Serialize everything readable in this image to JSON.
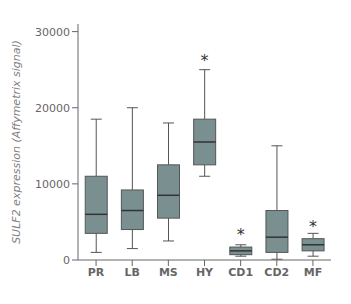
{
  "chart_data": {
    "type": "box",
    "categories": [
      "PR",
      "LB",
      "MS",
      "HY",
      "CD1",
      "CD2",
      "MF"
    ],
    "whislo": [
      1000,
      1500,
      2500,
      11000,
      500,
      100,
      500
    ],
    "q1": [
      3500,
      4000,
      5500,
      12500,
      700,
      1000,
      1200
    ],
    "med": [
      6000,
      6500,
      8500,
      15500,
      1200,
      3000,
      2000
    ],
    "q3": [
      11000,
      9200,
      12500,
      18500,
      1700,
      6500,
      2800
    ],
    "whishi": [
      18500,
      20000,
      18000,
      25000,
      2000,
      15000,
      3500
    ],
    "annotations": [
      {
        "category": "HY",
        "y": 26000,
        "text": "*"
      },
      {
        "category": "CD1",
        "y": 3200,
        "text": "*"
      },
      {
        "category": "MF",
        "y": 4200,
        "text": "*"
      }
    ],
    "color": "#7a9090",
    "ylabel": "SULF2 expression (Affymetrix signal)",
    "ylim": [
      0,
      31000
    ],
    "yticks": [
      0,
      10000,
      20000,
      30000
    ],
    "grid": false
  }
}
